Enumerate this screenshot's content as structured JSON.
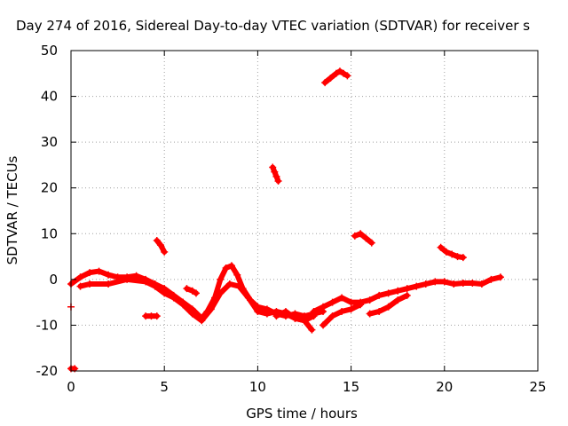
{
  "chart_data": {
    "type": "scatter",
    "title": "Day 274 of 2016, Sidereal Day-to-day VTEC variation (SDTVAR) for receiver s",
    "xlabel": "GPS time / hours",
    "ylabel": "SDTVAR / TECUs",
    "xlim": [
      0,
      25
    ],
    "ylim": [
      -20,
      50
    ],
    "xticks": [
      0,
      5,
      10,
      15,
      20,
      25
    ],
    "yticks": [
      -20,
      -10,
      0,
      10,
      20,
      30,
      40,
      50
    ],
    "grid": true,
    "marker": "plus",
    "color": "#ff0000",
    "series": [
      {
        "x": [
          0.0,
          0.5,
          1.0,
          1.5,
          2.0,
          2.5,
          3.0,
          3.5,
          4.0,
          4.5,
          5.0,
          5.5,
          6.0,
          6.5,
          7.0,
          7.3,
          7.7,
          8.0,
          8.3,
          8.6,
          8.9,
          9.2,
          9.6,
          10.0,
          10.5,
          11.0,
          11.5,
          12.0,
          12.5,
          13.0,
          13.5
        ],
        "y": [
          -1.0,
          0.5,
          1.5,
          1.8,
          1.0,
          0.5,
          0.5,
          0.8,
          0.0,
          -1.0,
          -2.0,
          -3.5,
          -5.0,
          -6.5,
          -8.5,
          -7.0,
          -4.0,
          0.0,
          2.5,
          3.0,
          1.0,
          -2.0,
          -4.5,
          -6.0,
          -6.5,
          -7.5,
          -8.0,
          -7.5,
          -8.0,
          -7.5,
          -7.0
        ]
      },
      {
        "x": [
          0.5,
          1.0,
          2.0,
          3.0,
          4.0,
          4.5,
          5.0,
          5.5,
          6.0,
          6.5,
          7.0,
          7.5,
          8.0,
          8.5,
          9.0,
          9.5,
          10.0,
          10.5,
          11.0,
          11.5,
          12.0,
          12.5,
          13.0
        ],
        "y": [
          -1.5,
          -1.0,
          -1.0,
          0.0,
          -0.5,
          -1.5,
          -3.0,
          -4.0,
          -5.5,
          -7.5,
          -9.0,
          -6.5,
          -3.0,
          -1.0,
          -1.5,
          -4.0,
          -7.0,
          -7.5,
          -7.0,
          -7.5,
          -8.5,
          -9.0,
          -8.0
        ]
      },
      {
        "x": [
          13.0,
          13.5,
          14.0,
          14.5,
          15.0,
          15.5,
          16.0,
          16.5,
          17.0,
          17.5,
          18.0,
          18.5,
          19.0,
          19.5,
          20.0,
          20.5,
          21.0,
          21.5,
          22.0,
          22.5,
          23.0
        ],
        "y": [
          -7.0,
          -6.0,
          -5.0,
          -4.0,
          -5.0,
          -5.0,
          -4.5,
          -3.5,
          -3.0,
          -2.5,
          -2.0,
          -1.5,
          -1.0,
          -0.5,
          -0.5,
          -1.0,
          -0.8,
          -0.8,
          -1.0,
          0.0,
          0.5
        ]
      },
      {
        "x": [
          13.5,
          14.0,
          14.5,
          15.0,
          15.5
        ],
        "y": [
          -10.0,
          -8.0,
          -7.0,
          -6.5,
          -5.5
        ]
      },
      {
        "x": [
          16.0,
          16.5,
          17.0,
          17.5,
          18.0
        ],
        "y": [
          -7.5,
          -7.0,
          -6.0,
          -4.5,
          -3.5
        ]
      },
      {
        "x": [
          11.0,
          11.5,
          12.0,
          12.5,
          12.9
        ],
        "y": [
          -8.0,
          -7.0,
          -8.5,
          -9.0,
          -11.0
        ]
      },
      {
        "x": [
          4.6,
          4.8,
          5.0
        ],
        "y": [
          8.5,
          7.5,
          6.0
        ]
      },
      {
        "x": [
          10.8,
          10.9,
          11.0,
          11.1
        ],
        "y": [
          24.5,
          23.5,
          22.5,
          21.5
        ]
      },
      {
        "x": [
          13.6,
          13.9,
          14.2,
          14.4,
          14.6,
          14.8
        ],
        "y": [
          43.0,
          44.0,
          45.0,
          45.5,
          45.0,
          44.5
        ]
      },
      {
        "x": [
          15.2,
          15.5,
          15.8,
          16.1
        ],
        "y": [
          9.5,
          10.0,
          9.0,
          8.0
        ]
      },
      {
        "x": [
          19.8,
          20.1,
          20.4,
          20.7,
          21.0
        ],
        "y": [
          7.0,
          6.0,
          5.5,
          5.0,
          4.8
        ]
      },
      {
        "x": [
          4.0,
          4.3,
          4.6
        ],
        "y": [
          -8.0,
          -8.0,
          -8.0
        ]
      },
      {
        "x": [
          6.2,
          6.5,
          6.7
        ],
        "y": [
          -2.0,
          -2.5,
          -3.0
        ]
      },
      {
        "x": [
          0.0
        ],
        "y": [
          -6.0
        ]
      },
      {
        "x": [
          0.0,
          0.2
        ],
        "y": [
          -19.5,
          -19.5
        ]
      }
    ]
  }
}
